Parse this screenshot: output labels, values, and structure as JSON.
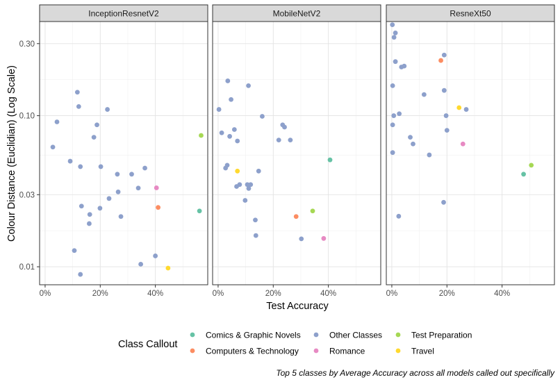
{
  "chart_data": {
    "type": "scatter",
    "xlabel": "Test Accuracy",
    "ylabel": "Colour Distance (Euclidian) (Log Scale)",
    "y_scale": "log",
    "xlim": [
      -0.02,
      0.59
    ],
    "ylim": [
      0.0076,
      0.42
    ],
    "x_ticks": [
      0,
      0.2,
      0.4
    ],
    "x_tick_labels": [
      "0%",
      "20%",
      "40%"
    ],
    "y_ticks": [
      0.01,
      0.03,
      0.1,
      0.3
    ],
    "y_tick_labels": [
      "0.01",
      "0.03",
      "0.10",
      "0.30"
    ],
    "grid": true,
    "legend": {
      "title": "Class Callout",
      "position": "bottom",
      "entries": [
        {
          "name": "Comics & Graphic Novels",
          "color": "#66c2a5"
        },
        {
          "name": "Computers & Technology",
          "color": "#fc8d62"
        },
        {
          "name": "Other Classes",
          "color": "#8da0cb"
        },
        {
          "name": "Romance",
          "color": "#e78ac3"
        },
        {
          "name": "Test Preparation",
          "color": "#a6d854"
        },
        {
          "name": "Travel",
          "color": "#ffd92f"
        }
      ]
    },
    "caption": "Top 5 classes by Average Accuracy across all models called out specifically",
    "panels": [
      {
        "name": "InceptionResnetV2",
        "points": [
          {
            "x": 0.028,
            "y": 0.062,
            "c": "Other Classes"
          },
          {
            "x": 0.043,
            "y": 0.091,
            "c": "Other Classes"
          },
          {
            "x": 0.091,
            "y": 0.05,
            "c": "Other Classes"
          },
          {
            "x": 0.106,
            "y": 0.0128,
            "c": "Other Classes"
          },
          {
            "x": 0.117,
            "y": 0.143,
            "c": "Other Classes"
          },
          {
            "x": 0.122,
            "y": 0.115,
            "c": "Other Classes"
          },
          {
            "x": 0.128,
            "y": 0.046,
            "c": "Other Classes"
          },
          {
            "x": 0.132,
            "y": 0.0252,
            "c": "Other Classes"
          },
          {
            "x": 0.128,
            "y": 0.0089,
            "c": "Other Classes"
          },
          {
            "x": 0.16,
            "y": 0.0193,
            "c": "Other Classes"
          },
          {
            "x": 0.162,
            "y": 0.0222,
            "c": "Other Classes"
          },
          {
            "x": 0.177,
            "y": 0.072,
            "c": "Other Classes"
          },
          {
            "x": 0.188,
            "y": 0.087,
            "c": "Other Classes"
          },
          {
            "x": 0.199,
            "y": 0.0244,
            "c": "Other Classes"
          },
          {
            "x": 0.202,
            "y": 0.046,
            "c": "Other Classes"
          },
          {
            "x": 0.226,
            "y": 0.11,
            "c": "Other Classes"
          },
          {
            "x": 0.232,
            "y": 0.0283,
            "c": "Other Classes"
          },
          {
            "x": 0.262,
            "y": 0.041,
            "c": "Other Classes"
          },
          {
            "x": 0.265,
            "y": 0.0313,
            "c": "Other Classes"
          },
          {
            "x": 0.275,
            "y": 0.0215,
            "c": "Other Classes"
          },
          {
            "x": 0.314,
            "y": 0.041,
            "c": "Other Classes"
          },
          {
            "x": 0.338,
            "y": 0.0332,
            "c": "Other Classes"
          },
          {
            "x": 0.347,
            "y": 0.0104,
            "c": "Other Classes"
          },
          {
            "x": 0.362,
            "y": 0.045,
            "c": "Other Classes"
          },
          {
            "x": 0.4,
            "y": 0.0118,
            "c": "Other Classes"
          },
          {
            "x": 0.404,
            "y": 0.0333,
            "c": "Romance"
          },
          {
            "x": 0.41,
            "y": 0.0247,
            "c": "Computers & Technology"
          },
          {
            "x": 0.446,
            "y": 0.0098,
            "c": "Travel"
          },
          {
            "x": 0.56,
            "y": 0.0234,
            "c": "Comics & Graphic Novels"
          },
          {
            "x": 0.566,
            "y": 0.074,
            "c": "Test Preparation"
          }
        ]
      },
      {
        "name": "MobileNetV2",
        "points": [
          {
            "x": 0.003,
            "y": 0.11,
            "c": "Other Classes"
          },
          {
            "x": 0.013,
            "y": 0.077,
            "c": "Other Classes"
          },
          {
            "x": 0.027,
            "y": 0.045,
            "c": "Other Classes"
          },
          {
            "x": 0.033,
            "y": 0.047,
            "c": "Other Classes"
          },
          {
            "x": 0.035,
            "y": 0.17,
            "c": "Other Classes"
          },
          {
            "x": 0.042,
            "y": 0.073,
            "c": "Other Classes"
          },
          {
            "x": 0.047,
            "y": 0.128,
            "c": "Other Classes"
          },
          {
            "x": 0.059,
            "y": 0.081,
            "c": "Other Classes"
          },
          {
            "x": 0.067,
            "y": 0.034,
            "c": "Other Classes"
          },
          {
            "x": 0.07,
            "y": 0.068,
            "c": "Other Classes"
          },
          {
            "x": 0.078,
            "y": 0.035,
            "c": "Other Classes"
          },
          {
            "x": 0.098,
            "y": 0.0275,
            "c": "Other Classes"
          },
          {
            "x": 0.106,
            "y": 0.035,
            "c": "Other Classes"
          },
          {
            "x": 0.11,
            "y": 0.158,
            "c": "Other Classes"
          },
          {
            "x": 0.111,
            "y": 0.033,
            "c": "Other Classes"
          },
          {
            "x": 0.118,
            "y": 0.035,
            "c": "Other Classes"
          },
          {
            "x": 0.135,
            "y": 0.0204,
            "c": "Other Classes"
          },
          {
            "x": 0.137,
            "y": 0.0161,
            "c": "Other Classes"
          },
          {
            "x": 0.147,
            "y": 0.043,
            "c": "Other Classes"
          },
          {
            "x": 0.16,
            "y": 0.099,
            "c": "Other Classes"
          },
          {
            "x": 0.22,
            "y": 0.069,
            "c": "Other Classes"
          },
          {
            "x": 0.234,
            "y": 0.087,
            "c": "Other Classes"
          },
          {
            "x": 0.241,
            "y": 0.084,
            "c": "Other Classes"
          },
          {
            "x": 0.262,
            "y": 0.069,
            "c": "Other Classes"
          },
          {
            "x": 0.302,
            "y": 0.0153,
            "c": "Other Classes"
          },
          {
            "x": 0.07,
            "y": 0.043,
            "c": "Travel"
          },
          {
            "x": 0.283,
            "y": 0.0215,
            "c": "Computers & Technology"
          },
          {
            "x": 0.343,
            "y": 0.0234,
            "c": "Test Preparation"
          },
          {
            "x": 0.383,
            "y": 0.0154,
            "c": "Romance"
          },
          {
            "x": 0.406,
            "y": 0.051,
            "c": "Comics & Graphic Novels"
          }
        ]
      },
      {
        "name": "ResneXt50",
        "points": [
          {
            "x": 0.002,
            "y": 0.4,
            "c": "Other Classes"
          },
          {
            "x": 0.003,
            "y": 0.158,
            "c": "Other Classes"
          },
          {
            "x": 0.003,
            "y": 0.087,
            "c": "Other Classes"
          },
          {
            "x": 0.003,
            "y": 0.057,
            "c": "Other Classes"
          },
          {
            "x": 0.007,
            "y": 0.1,
            "c": "Other Classes"
          },
          {
            "x": 0.008,
            "y": 0.33,
            "c": "Other Classes"
          },
          {
            "x": 0.013,
            "y": 0.353,
            "c": "Other Classes"
          },
          {
            "x": 0.013,
            "y": 0.228,
            "c": "Other Classes"
          },
          {
            "x": 0.025,
            "y": 0.0216,
            "c": "Other Classes"
          },
          {
            "x": 0.027,
            "y": 0.103,
            "c": "Other Classes"
          },
          {
            "x": 0.035,
            "y": 0.21,
            "c": "Other Classes"
          },
          {
            "x": 0.045,
            "y": 0.213,
            "c": "Other Classes"
          },
          {
            "x": 0.067,
            "y": 0.072,
            "c": "Other Classes"
          },
          {
            "x": 0.077,
            "y": 0.065,
            "c": "Other Classes"
          },
          {
            "x": 0.117,
            "y": 0.138,
            "c": "Other Classes"
          },
          {
            "x": 0.136,
            "y": 0.055,
            "c": "Other Classes"
          },
          {
            "x": 0.188,
            "y": 0.0267,
            "c": "Other Classes"
          },
          {
            "x": 0.19,
            "y": 0.147,
            "c": "Other Classes"
          },
          {
            "x": 0.19,
            "y": 0.252,
            "c": "Other Classes"
          },
          {
            "x": 0.197,
            "y": 0.1,
            "c": "Other Classes"
          },
          {
            "x": 0.2,
            "y": 0.08,
            "c": "Other Classes"
          },
          {
            "x": 0.27,
            "y": 0.11,
            "c": "Other Classes"
          },
          {
            "x": 0.178,
            "y": 0.232,
            "c": "Computers & Technology"
          },
          {
            "x": 0.244,
            "y": 0.113,
            "c": "Travel"
          },
          {
            "x": 0.258,
            "y": 0.065,
            "c": "Romance"
          },
          {
            "x": 0.478,
            "y": 0.041,
            "c": "Comics & Graphic Novels"
          },
          {
            "x": 0.506,
            "y": 0.047,
            "c": "Test Preparation"
          }
        ]
      }
    ]
  }
}
